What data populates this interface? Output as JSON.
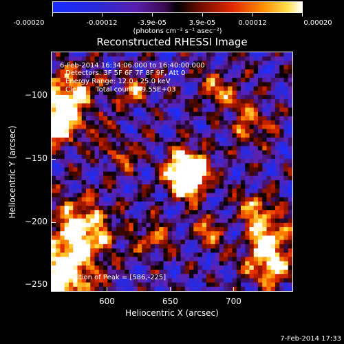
{
  "colorbar": {
    "tick_labels": [
      "-0.00020",
      "-0.00012",
      "-3.9e-05",
      "3.9e-05",
      "0.00012",
      "0.00020"
    ],
    "unit_label": "(photons cm⁻² s⁻¹ asec⁻²)",
    "range": [
      -0.0002,
      0.0002
    ]
  },
  "title": "Reconstructed RHESSI Image",
  "annotations": {
    "time_range": "6-Feb-2014 16:34:06.000 to 16:40:00.000",
    "detectors": "Detectors: 3F 5F 6F 7F 8F 9F, Att 0",
    "energy_range": "Energy Range: 12.0 - 25.0 keV",
    "clean": "Clean     Total counts: 9.55E+03",
    "peak": "Position of Peak = [586,-225]"
  },
  "axes": {
    "xlabel": "Heliocentric X (arcsec)",
    "ylabel": "Heliocentric Y (arcsec)",
    "xlim": [
      560,
      750
    ],
    "ylim": [
      -258,
      -72
    ],
    "xticks": [
      600,
      650,
      700
    ],
    "yticks": [
      -100,
      -150,
      -200,
      -250
    ],
    "xtick_labels": [
      "600",
      "650",
      "700"
    ],
    "ytick_labels": [
      "−100",
      "−150",
      "−200",
      "−250"
    ]
  },
  "footer": {
    "timestamp": "7-Feb-2014 17:33"
  }
}
